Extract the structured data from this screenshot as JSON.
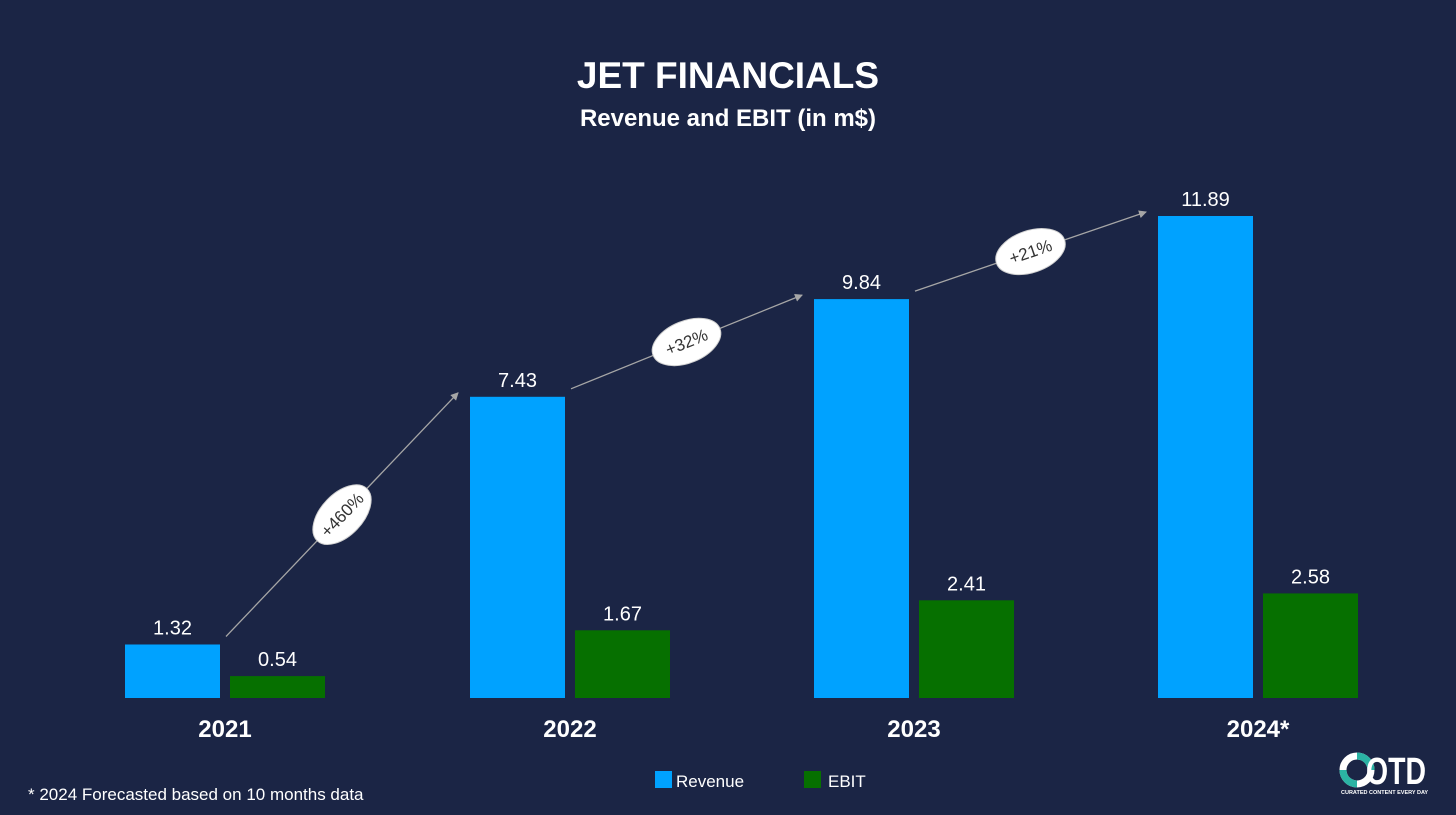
{
  "colors": {
    "background": "#1b2545",
    "revenue": "#00a2ff",
    "ebit": "#067000",
    "bubble": "#ffffff",
    "arrow": "#a6a6a6"
  },
  "chart_data": {
    "type": "bar",
    "title": "JET FINANCIALS",
    "subtitle": "Revenue and EBIT (in m$)",
    "categories": [
      "2021",
      "2022",
      "2023",
      "2024*"
    ],
    "series": [
      {
        "name": "Revenue",
        "values": [
          1.32,
          7.43,
          9.84,
          11.89
        ],
        "labels": [
          "1.32",
          "7.43",
          "9.84",
          "11.89"
        ]
      },
      {
        "name": "EBIT",
        "values": [
          0.54,
          1.67,
          2.41,
          2.58
        ],
        "labels": [
          "0.54",
          "1.67",
          "2.41",
          "2.58"
        ]
      }
    ],
    "ylim": [
      0,
      12
    ],
    "grid": false,
    "legend": {
      "position": "bottom-center",
      "entries": [
        "Revenue",
        "EBIT"
      ]
    },
    "annotations": [
      {
        "from": "2021",
        "to": "2022",
        "text": "+460%"
      },
      {
        "from": "2022",
        "to": "2023",
        "text": "+32%"
      },
      {
        "from": "2023",
        "to": "2024*",
        "text": "+21%"
      }
    ],
    "footnote": "* 2024 Forecasted based on 10 months data"
  },
  "logo": {
    "text": "OTD",
    "tagline": "CURATED CONTENT EVERY DAY"
  }
}
